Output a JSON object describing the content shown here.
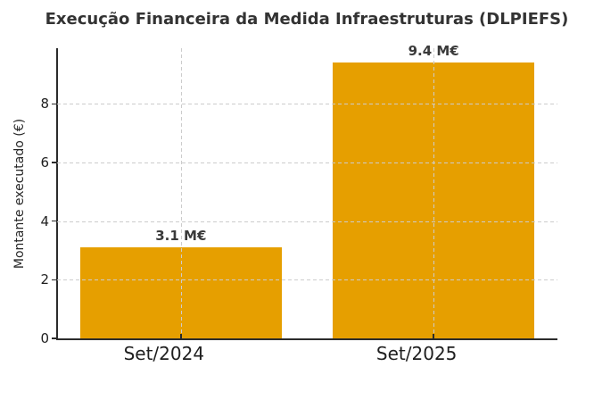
{
  "chart_data": {
    "type": "bar",
    "title": "Execução Financeira da Medida Infraestruturas (DLPIEFS)",
    "categories": [
      "Set/2024",
      "Set/2025"
    ],
    "values": [
      3.1,
      9.4
    ],
    "bar_labels": [
      "3.1 M€",
      "9.4 M€"
    ],
    "xlabel": "",
    "ylabel": "Montante executado (€)",
    "yticks": [
      0,
      2,
      4,
      6,
      8
    ],
    "ylim": [
      0,
      9.9
    ],
    "grid": true,
    "grid_style": "dashed",
    "legend": "none",
    "colors": {
      "bar": "#E69F00",
      "grid": "#CCCCCC",
      "axis": "#2B2B2B",
      "title_text": "#333333",
      "tick_text": "#1F1F1F",
      "value_label_text": "#3A3A3A",
      "background": "#FFFFFF"
    }
  }
}
